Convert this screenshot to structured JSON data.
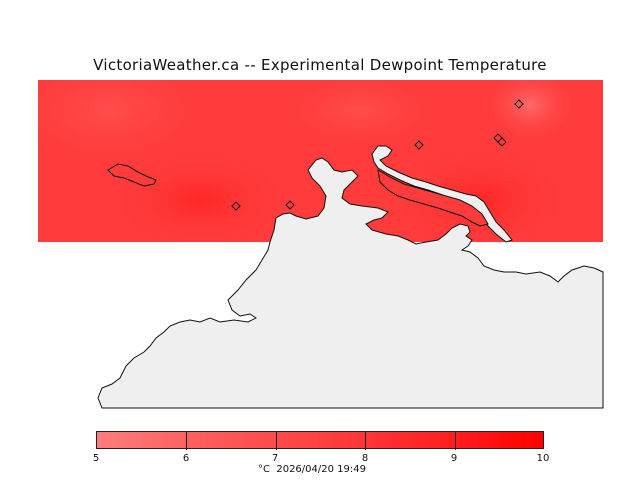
{
  "title": "VictoriaWeather.ca -- Experimental Dewpoint Temperature",
  "legend": {
    "ticks": [
      "5",
      "6",
      "7",
      "8",
      "9",
      "10"
    ],
    "unit": "°C",
    "timestamp": "2026/04/20 19:49"
  },
  "colors": {
    "field_base": "#ff3b3b",
    "land": "#efefef",
    "coast": "#111111",
    "background": "#ffffff"
  },
  "stations": [
    {
      "id": "station-1"
    },
    {
      "id": "station-2"
    },
    {
      "id": "station-3"
    },
    {
      "id": "station-4"
    },
    {
      "id": "station-5"
    },
    {
      "id": "station-6"
    }
  ]
}
